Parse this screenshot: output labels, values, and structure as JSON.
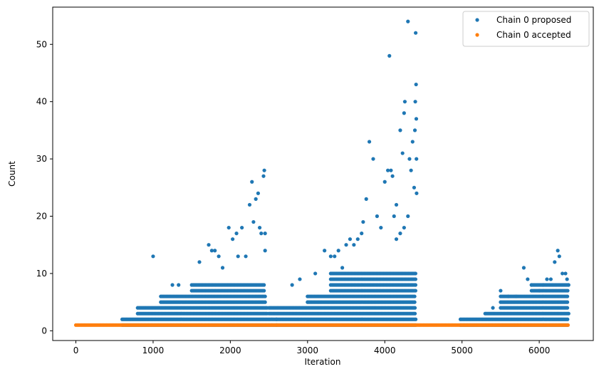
{
  "chart_data": {
    "type": "scatter",
    "title": "",
    "xlabel": "Iteration",
    "ylabel": "Count",
    "xlim": [
      -300,
      6700
    ],
    "ylim": [
      -1.7,
      56.5
    ],
    "xticks": [
      0,
      1000,
      2000,
      3000,
      4000,
      5000,
      6000
    ],
    "yticks": [
      0,
      10,
      20,
      30,
      40,
      50
    ],
    "grid": false,
    "legend_position": "top-right",
    "series": [
      {
        "name": "Chain 0 proposed",
        "color": "#1f77b4",
        "band_segments": [
          {
            "from": 600,
            "to": 2600,
            "values": [
              1,
              2
            ]
          },
          {
            "from": 2600,
            "to": 4400,
            "values": [
              1,
              2
            ]
          },
          {
            "from": 4980,
            "to": 6380,
            "values": [
              1,
              2
            ]
          },
          {
            "from": 800,
            "to": 2480,
            "values": [
              3,
              4
            ]
          },
          {
            "from": 2500,
            "to": 4400,
            "values": [
              3,
              4
            ]
          },
          {
            "from": 5300,
            "to": 6380,
            "values": [
              3
            ]
          },
          {
            "from": 1100,
            "to": 2450,
            "values": [
              5,
              6
            ]
          },
          {
            "from": 3000,
            "to": 4400,
            "values": [
              5,
              6
            ]
          },
          {
            "from": 5500,
            "to": 6380,
            "values": [
              4,
              5,
              6
            ]
          },
          {
            "from": 1500,
            "to": 2450,
            "values": [
              7,
              8
            ]
          },
          {
            "from": 3300,
            "to": 4400,
            "values": [
              7,
              8,
              9,
              10
            ]
          },
          {
            "from": 5900,
            "to": 6380,
            "values": [
              7,
              8
            ]
          }
        ],
        "points": [
          [
            1000,
            13
          ],
          [
            1250,
            8
          ],
          [
            1330,
            8
          ],
          [
            1600,
            12
          ],
          [
            1720,
            15
          ],
          [
            1760,
            14
          ],
          [
            1800,
            14
          ],
          [
            1850,
            13
          ],
          [
            1900,
            11
          ],
          [
            1980,
            18
          ],
          [
            2030,
            16
          ],
          [
            2080,
            17
          ],
          [
            2100,
            13
          ],
          [
            2150,
            18
          ],
          [
            2200,
            13
          ],
          [
            2250,
            22
          ],
          [
            2280,
            26
          ],
          [
            2300,
            19
          ],
          [
            2330,
            23
          ],
          [
            2360,
            24
          ],
          [
            2380,
            18
          ],
          [
            2400,
            17
          ],
          [
            2430,
            27
          ],
          [
            2440,
            28
          ],
          [
            2450,
            17
          ],
          [
            2450,
            14
          ],
          [
            2800,
            8
          ],
          [
            2900,
            9
          ],
          [
            3100,
            10
          ],
          [
            3220,
            14
          ],
          [
            3300,
            13
          ],
          [
            3350,
            13
          ],
          [
            3400,
            14
          ],
          [
            3450,
            11
          ],
          [
            3500,
            15
          ],
          [
            3550,
            16
          ],
          [
            3600,
            15
          ],
          [
            3650,
            16
          ],
          [
            3700,
            17
          ],
          [
            3720,
            19
          ],
          [
            3760,
            23
          ],
          [
            3800,
            33
          ],
          [
            3850,
            30
          ],
          [
            3900,
            20
          ],
          [
            3950,
            18
          ],
          [
            4000,
            26
          ],
          [
            4040,
            28
          ],
          [
            4060,
            48
          ],
          [
            4080,
            28
          ],
          [
            4100,
            27
          ],
          [
            4120,
            20
          ],
          [
            4150,
            22
          ],
          [
            4200,
            35
          ],
          [
            4230,
            31
          ],
          [
            4250,
            38
          ],
          [
            4260,
            40
          ],
          [
            4300,
            54
          ],
          [
            4320,
            30
          ],
          [
            4340,
            28
          ],
          [
            4360,
            33
          ],
          [
            4380,
            25
          ],
          [
            4390,
            35
          ],
          [
            4395,
            40
          ],
          [
            4400,
            52
          ],
          [
            4405,
            43
          ],
          [
            4408,
            37
          ],
          [
            4410,
            30
          ],
          [
            4412,
            24
          ],
          [
            4300,
            20
          ],
          [
            4250,
            18
          ],
          [
            4200,
            17
          ],
          [
            4150,
            16
          ],
          [
            5400,
            4
          ],
          [
            5500,
            7
          ],
          [
            5600,
            6
          ],
          [
            5700,
            6
          ],
          [
            5800,
            11
          ],
          [
            5850,
            9
          ],
          [
            5900,
            8
          ],
          [
            6000,
            7
          ],
          [
            6050,
            8
          ],
          [
            6100,
            9
          ],
          [
            6150,
            9
          ],
          [
            6200,
            12
          ],
          [
            6240,
            14
          ],
          [
            6260,
            13
          ],
          [
            6300,
            10
          ],
          [
            6340,
            10
          ],
          [
            6360,
            9
          ],
          [
            6380,
            8
          ]
        ]
      },
      {
        "name": "Chain 0 accepted",
        "color": "#ff7f0e",
        "band_segments": [
          {
            "from": 0,
            "to": 6380,
            "values": [
              1
            ]
          }
        ],
        "points": []
      }
    ]
  }
}
